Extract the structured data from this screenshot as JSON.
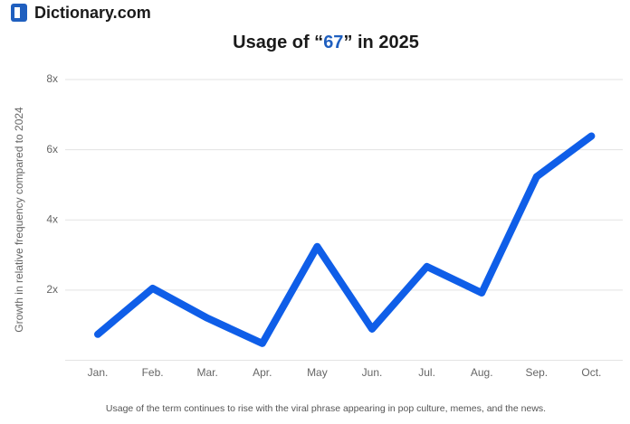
{
  "brand": "Dictionary.com",
  "chart_data": {
    "type": "line",
    "title": [
      {
        "text": "Usage of “",
        "color": "#1a1a1a"
      },
      {
        "text": "67",
        "color": "#1f5fbf"
      },
      {
        "text": "” in 2025",
        "color": "#1a1a1a"
      }
    ],
    "y_label": "Growth in relative frequency compared to 2024",
    "categories": [
      "Jan.",
      "Feb.",
      "Mar.",
      "Apr.",
      "May",
      "Jun.",
      "Jul.",
      "Aug.",
      "Sep.",
      "Oct."
    ],
    "values": [
      0.74,
      2.05,
      1.2,
      0.48,
      3.24,
      0.89,
      2.67,
      1.92,
      5.23,
      6.39
    ],
    "color": "#0f5ee8",
    "ylim": [
      0,
      8
    ],
    "yticks": [
      {
        "value": 2,
        "label": "2x"
      },
      {
        "value": 4,
        "label": "4x"
      },
      {
        "value": 6,
        "label": "6x"
      },
      {
        "value": 8,
        "label": "8x"
      }
    ],
    "grid": true,
    "caption": "Usage of the term continues to rise with the viral phrase appearing in pop culture, memes, and the news."
  }
}
